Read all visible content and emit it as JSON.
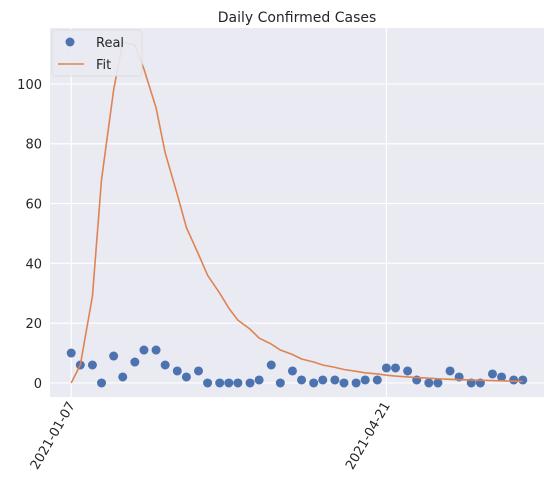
{
  "chart_data": {
    "type": "scatter-line",
    "title": "Daily Confirmed Cases",
    "x": [
      "2021-01-07",
      "2021-01-10",
      "2021-01-14",
      "2021-01-17",
      "2021-01-21",
      "2021-01-24",
      "2021-01-28",
      "2021-01-31",
      "2021-02-04",
      "2021-02-07",
      "2021-02-11",
      "2021-02-14",
      "2021-02-18",
      "2021-02-21",
      "2021-02-25",
      "2021-02-28",
      "2021-03-03",
      "2021-03-07",
      "2021-03-10",
      "2021-03-14",
      "2021-03-17",
      "2021-03-21",
      "2021-03-24",
      "2021-03-28",
      "2021-03-31",
      "2021-04-04",
      "2021-04-07",
      "2021-04-11",
      "2021-04-14",
      "2021-04-18",
      "2021-04-21",
      "2021-04-24",
      "2021-04-28",
      "2021-05-01",
      "2021-05-05",
      "2021-05-08",
      "2021-05-12",
      "2021-05-15",
      "2021-05-19",
      "2021-05-22",
      "2021-05-26",
      "2021-05-29",
      "2021-06-02",
      "2021-06-05"
    ],
    "series": [
      {
        "name": "Real",
        "color": "#4c72b0",
        "kind": "scatter",
        "values": [
          10,
          6,
          6,
          0,
          9,
          2,
          7,
          11,
          11,
          6,
          4,
          2,
          4,
          0,
          0,
          0,
          0,
          0,
          1,
          6,
          0,
          4,
          1,
          0,
          1,
          1,
          0,
          0,
          1,
          1,
          5,
          5,
          4,
          1,
          0,
          0,
          4,
          2,
          0,
          0,
          3,
          2,
          1,
          1
        ]
      },
      {
        "name": "Fit",
        "color": "#dd8452",
        "kind": "line",
        "values": [
          0,
          6,
          29,
          68,
          98,
          114,
          113,
          105,
          92,
          77,
          63,
          52,
          43,
          36,
          30,
          25,
          21,
          18,
          15,
          13,
          11,
          9.5,
          8,
          7,
          6,
          5.2,
          4.5,
          3.9,
          3.4,
          3,
          2.6,
          2.3,
          2,
          1.8,
          1.6,
          1.4,
          1.2,
          1.1,
          1,
          0.9,
          0.8,
          0.7,
          0.6,
          0.5
        ]
      }
    ],
    "xlim": [
      "2020-12-31",
      "2021-06-12"
    ],
    "xticks": [
      "2021-01-07",
      "2021-04-21"
    ],
    "ylim": [
      -4.7,
      118.7
    ],
    "yticks": [
      0,
      20,
      40,
      60,
      80,
      100
    ],
    "grid": true,
    "legend": "upper left"
  }
}
